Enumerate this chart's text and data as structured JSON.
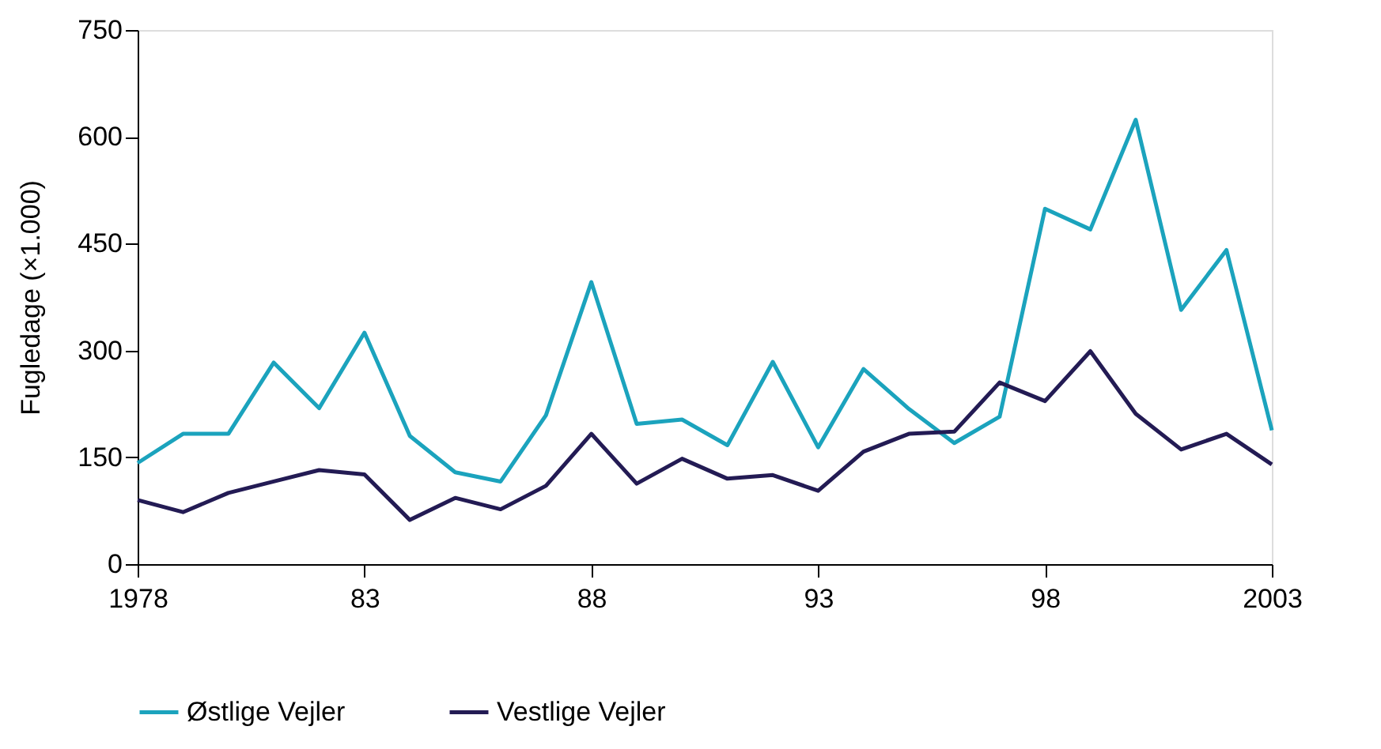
{
  "chart_data": {
    "type": "line",
    "ylabel": "Fugledage (×1.000)",
    "x": [
      1978,
      1979,
      1980,
      1981,
      1982,
      1983,
      1984,
      1985,
      1986,
      1987,
      1988,
      1989,
      1990,
      1991,
      1992,
      1993,
      1994,
      1995,
      1996,
      1997,
      1998,
      1999,
      2000,
      2001,
      2002,
      2003
    ],
    "series": [
      {
        "name": "Østlige Vejler",
        "color": "#1ba3bd",
        "values": [
          142,
          183,
          183,
          283,
          219,
          325,
          180,
          129,
          116,
          209,
          396,
          197,
          203,
          167,
          284,
          164,
          274,
          218,
          170,
          207,
          499,
          470,
          624,
          357,
          441,
          188
        ]
      },
      {
        "name": "Vestlige Vejler",
        "color": "#231b54",
        "values": [
          90,
          73,
          100,
          116,
          132,
          126,
          62,
          93,
          77,
          110,
          183,
          113,
          148,
          120,
          125,
          103,
          158,
          183,
          186,
          255,
          229,
          299,
          211,
          161,
          183,
          140
        ]
      }
    ],
    "xlim": [
      1978,
      2003
    ],
    "xticks": [
      1978,
      {
        "value": 1983,
        "label": "83"
      },
      {
        "value": 1988,
        "label": "88"
      },
      {
        "value": 1993,
        "label": "93"
      },
      {
        "value": 1998,
        "label": "98"
      },
      2003
    ],
    "ylim": [
      0,
      750
    ],
    "yticks": [
      0,
      150,
      300,
      450,
      600,
      750
    ],
    "grid": false,
    "legend": "bottom left",
    "line_style": "solid",
    "marker": "none"
  }
}
